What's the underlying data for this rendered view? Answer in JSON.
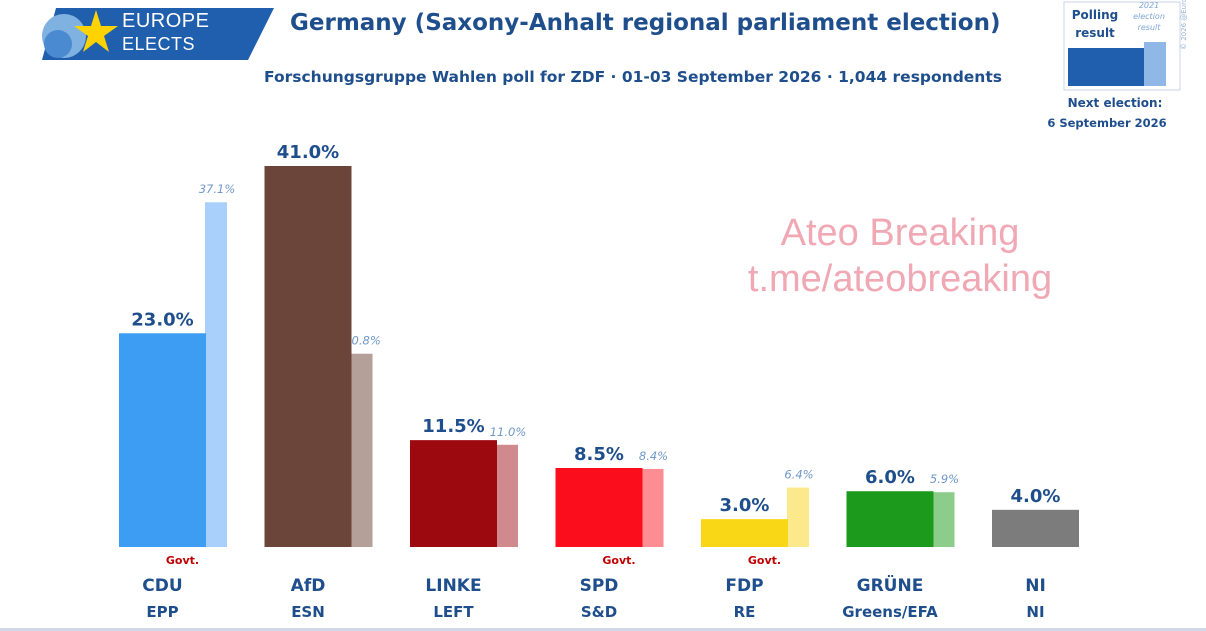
{
  "logo": {
    "line1": "EUROPE",
    "line2": "ELECTS"
  },
  "title": "Germany (Saxony-Anhalt regional parliament election)",
  "subtitle": "Forschungsgruppe Wahlen poll for ZDF · 01-03 September 2026 · 1,044 respondents",
  "legend": {
    "poll_label": "Polling result",
    "prev_label": "2021 election result",
    "copyright": "© 2026 @EuropeElects",
    "next_election_label": "Next election:",
    "next_election_date": "6 September 2026"
  },
  "watermark": {
    "line1": "Ateo Breaking",
    "line2": "t.me/ateobreaking"
  },
  "colors": {
    "CDU": "#3d9df3",
    "CDU_prev": "#a8d0fb",
    "AfD": "#6b443a",
    "AfD_prev": "#b59f99",
    "LINKE": "#9c0a10",
    "LINKE_prev": "#d08a8d",
    "SPD": "#fc0d1b",
    "SPD_prev": "#fc8d92",
    "FDP": "#fad716",
    "FDP_prev": "#fbe98c",
    "GRUNE": "#1b9a1b",
    "GRUNE_prev": "#8ccd8c",
    "NI": "#7c7c7c"
  },
  "chart_data": {
    "type": "bar",
    "categories": [
      "CDU",
      "AfD",
      "LINKE",
      "SPD",
      "FDP",
      "GRÜNE",
      "NI"
    ],
    "groups": [
      "EPP",
      "ESN",
      "LEFT",
      "S&D",
      "RE",
      "Greens/EFA",
      "NI"
    ],
    "series": [
      {
        "name": "Polling result",
        "values": [
          23.0,
          41.0,
          11.5,
          8.5,
          3.0,
          6.0,
          4.0
        ],
        "labels": [
          "23.0%",
          "41.0%",
          "11.5%",
          "8.5%",
          "3.0%",
          "6.0%",
          "4.0%"
        ]
      },
      {
        "name": "2021 election result",
        "values": [
          37.1,
          20.8,
          11.0,
          8.4,
          6.4,
          5.9,
          null
        ],
        "labels": [
          "37.1%",
          "20.8%",
          "11.0%",
          "8.4%",
          "6.4%",
          "5.9%",
          ""
        ]
      }
    ],
    "govt_label": "Govt.",
    "govt_parties": [
      "CDU",
      "SPD",
      "FDP"
    ],
    "ylim": [
      0,
      41.0
    ]
  }
}
